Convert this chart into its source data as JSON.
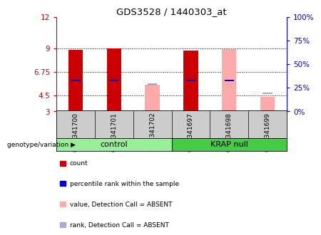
{
  "title": "GDS3528 / 1440303_at",
  "samples": [
    "GSM341700",
    "GSM341701",
    "GSM341702",
    "GSM341697",
    "GSM341698",
    "GSM341699"
  ],
  "y_min": 3,
  "y_max": 12,
  "y_ticks": [
    3,
    4.5,
    6.75,
    9,
    12
  ],
  "y_tick_labels": [
    "3",
    "4.5",
    "6.75",
    "9",
    "12"
  ],
  "y2_ticks": [
    0,
    25,
    50,
    75,
    100
  ],
  "y2_tick_labels": [
    "0%",
    "25%",
    "50%",
    "75%",
    "100%"
  ],
  "bars": [
    {
      "count_val": 8.85,
      "rank_val": 5.9,
      "absent_val": null,
      "absent_rank": null
    },
    {
      "count_val": 9.0,
      "rank_val": 5.95,
      "absent_val": null,
      "absent_rank": null
    },
    {
      "count_val": null,
      "rank_val": null,
      "absent_val": 5.55,
      "absent_rank": 5.55
    },
    {
      "count_val": 8.75,
      "rank_val": 5.9,
      "absent_val": null,
      "absent_rank": null
    },
    {
      "count_val": null,
      "rank_val": 5.95,
      "absent_val": 8.9,
      "absent_rank": null
    },
    {
      "count_val": null,
      "rank_val": null,
      "absent_val": 4.35,
      "absent_rank": 4.7
    }
  ],
  "count_color": "#cc0000",
  "rank_color": "#0000cc",
  "absent_val_color": "#ffaaaa",
  "absent_rank_color": "#aaaacc",
  "label_area_bg": "#cccccc",
  "group_bg_control": "#99ee99",
  "group_bg_krap": "#44cc44",
  "legend_items": [
    {
      "color": "#cc0000",
      "label": "count"
    },
    {
      "color": "#0000cc",
      "label": "percentile rank within the sample"
    },
    {
      "color": "#ffaaaa",
      "label": "value, Detection Call = ABSENT"
    },
    {
      "color": "#aaaacc",
      "label": "rank, Detection Call = ABSENT"
    }
  ]
}
